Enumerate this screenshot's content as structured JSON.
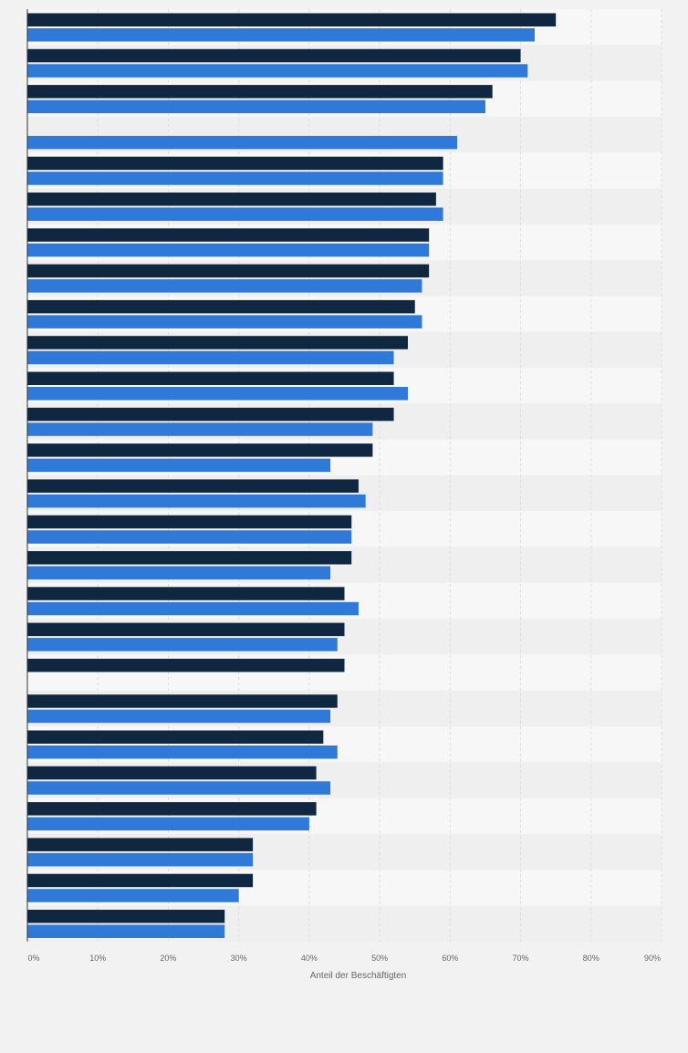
{
  "colors": {
    "page_background": "#f2f2f2",
    "plot_band_light": "#f7f7f7",
    "plot_band_dark": "#efefef",
    "series_dark": "#0f2741",
    "series_blue": "#2f79d8",
    "gridline": "#dcdcdc"
  },
  "chart_data": {
    "type": "bar",
    "orientation": "horizontal",
    "title": "",
    "xlabel": "Anteil der Beschäftigten",
    "ylabel": "",
    "xlim": [
      0,
      90
    ],
    "xticks": [
      "0%",
      "10%",
      "20%",
      "30%",
      "40%",
      "50%",
      "60%",
      "70%",
      "80%",
      "90%"
    ],
    "grid": true,
    "legend": "none",
    "category_labels_visible": false,
    "series": [
      {
        "color": "#0f2741",
        "values": [
          75,
          70,
          66,
          null,
          59,
          58,
          57,
          57,
          55,
          54,
          52,
          52,
          49,
          47,
          46,
          46,
          45,
          45,
          45,
          44,
          42,
          41,
          41,
          32,
          32,
          28
        ]
      },
      {
        "color": "#2f79d8",
        "values": [
          72,
          71,
          65,
          61,
          59,
          59,
          57,
          56,
          56,
          52,
          54,
          49,
          43,
          48,
          46,
          43,
          47,
          44,
          null,
          43,
          44,
          43,
          40,
          32,
          30,
          28
        ]
      }
    ]
  }
}
